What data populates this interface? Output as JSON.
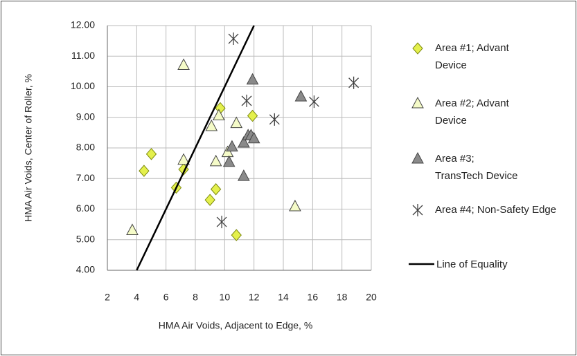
{
  "chart_data": {
    "type": "scatter",
    "xlabel": "HMA Air Voids, Adjacent to Edge, %",
    "ylabel": "HMA Air Voids, Center of Roller, %",
    "xlim": [
      2,
      20
    ],
    "xticks": [
      2,
      4,
      6,
      8,
      10,
      12,
      14,
      16,
      18,
      20
    ],
    "ylim": [
      4,
      12
    ],
    "yticks": [
      {
        "value": 4,
        "label": "4.00"
      },
      {
        "value": 5,
        "label": "5.00"
      },
      {
        "value": 6,
        "label": "6.00"
      },
      {
        "value": 7,
        "label": "7.00"
      },
      {
        "value": 8,
        "label": "8.00"
      },
      {
        "value": 9,
        "label": "9.00"
      },
      {
        "value": 10,
        "label": "10.00"
      },
      {
        "value": 11,
        "label": "11.00"
      },
      {
        "value": 12,
        "label": "12.00"
      }
    ],
    "grid": true,
    "legend": "right",
    "series": [
      {
        "name": "Area #1; Advant Device",
        "marker": "diamond",
        "color": "#e4f04c",
        "x": [
          4.5,
          5.0,
          6.7,
          7.2,
          9.0,
          9.4,
          9.7,
          10.8,
          11.9
        ],
        "values": [
          7.25,
          7.8,
          6.7,
          7.3,
          6.3,
          6.65,
          9.3,
          5.15,
          9.05
        ]
      },
      {
        "name": "Area #2; Advant Device",
        "marker": "triangle",
        "color": "#f5fbc8",
        "x": [
          3.7,
          7.2,
          7.2,
          9.1,
          9.6,
          9.4,
          10.8,
          10.2,
          14.8
        ],
        "values": [
          5.3,
          10.7,
          7.6,
          8.7,
          9.05,
          7.55,
          8.8,
          7.85,
          6.08
        ]
      },
      {
        "name": "Area #3; TransTech Device",
        "marker": "triangle",
        "color": "#8a8a8a",
        "x": [
          11.9,
          15.2,
          10.3,
          10.5,
          11.3,
          11.3,
          11.6,
          11.8,
          12.0
        ],
        "values": [
          10.22,
          9.67,
          7.53,
          8.03,
          7.07,
          8.16,
          8.4,
          8.4,
          8.3
        ]
      },
      {
        "name": "Area #4; Non-Safety Edge",
        "marker": "star",
        "color": "#404040",
        "x": [
          10.6,
          11.5,
          13.4,
          16.1,
          18.8,
          9.8
        ],
        "values": [
          11.57,
          9.54,
          8.93,
          9.51,
          10.13,
          5.58
        ]
      },
      {
        "name": "Line of Equality",
        "marker": "line",
        "color": "#000000",
        "x": [
          4,
          12
        ],
        "values": [
          4,
          12
        ]
      }
    ]
  }
}
